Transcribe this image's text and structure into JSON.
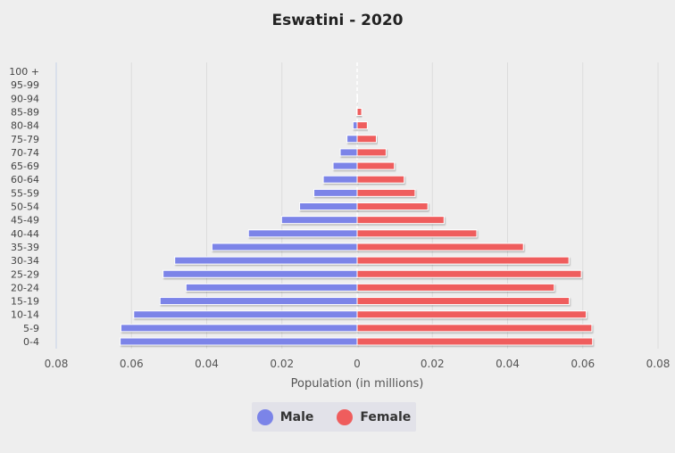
{
  "chart_data": {
    "type": "bar",
    "orientation": "horizontal-population-pyramid",
    "title": "Eswatini - 2020",
    "xlabel": "Population (in millions)",
    "ylabel": "",
    "xlim": [
      -0.08,
      0.08
    ],
    "x_ticks": [
      "0.08",
      "0.06",
      "0.04",
      "0.02",
      "0",
      "0.02",
      "0.04",
      "0.06",
      "0.08"
    ],
    "categories": [
      "0-4",
      "5-9",
      "10-14",
      "15-19",
      "20-24",
      "25-29",
      "30-34",
      "35-39",
      "40-44",
      "45-49",
      "50-54",
      "55-59",
      "60-64",
      "65-69",
      "70-74",
      "75-79",
      "80-84",
      "85-89",
      "90-94",
      "95-99",
      "100 +"
    ],
    "series": [
      {
        "name": "Male",
        "color": "#7b84e8",
        "values": [
          0.063,
          0.0628,
          0.0594,
          0.0524,
          0.0455,
          0.0516,
          0.0485,
          0.0386,
          0.0289,
          0.0201,
          0.0153,
          0.0115,
          0.009,
          0.0064,
          0.0045,
          0.0027,
          0.0011,
          0.0002,
          0.0,
          0.0,
          0.0
        ]
      },
      {
        "name": "Female",
        "color": "#ef5d5d",
        "values": [
          0.0626,
          0.0624,
          0.0609,
          0.0564,
          0.0524,
          0.0596,
          0.0563,
          0.0442,
          0.0318,
          0.0231,
          0.0188,
          0.0154,
          0.0125,
          0.0099,
          0.0077,
          0.0051,
          0.0027,
          0.0012,
          0.0002,
          0.0,
          0.0
        ]
      }
    ],
    "grid": true,
    "legend_position": "bottom"
  }
}
